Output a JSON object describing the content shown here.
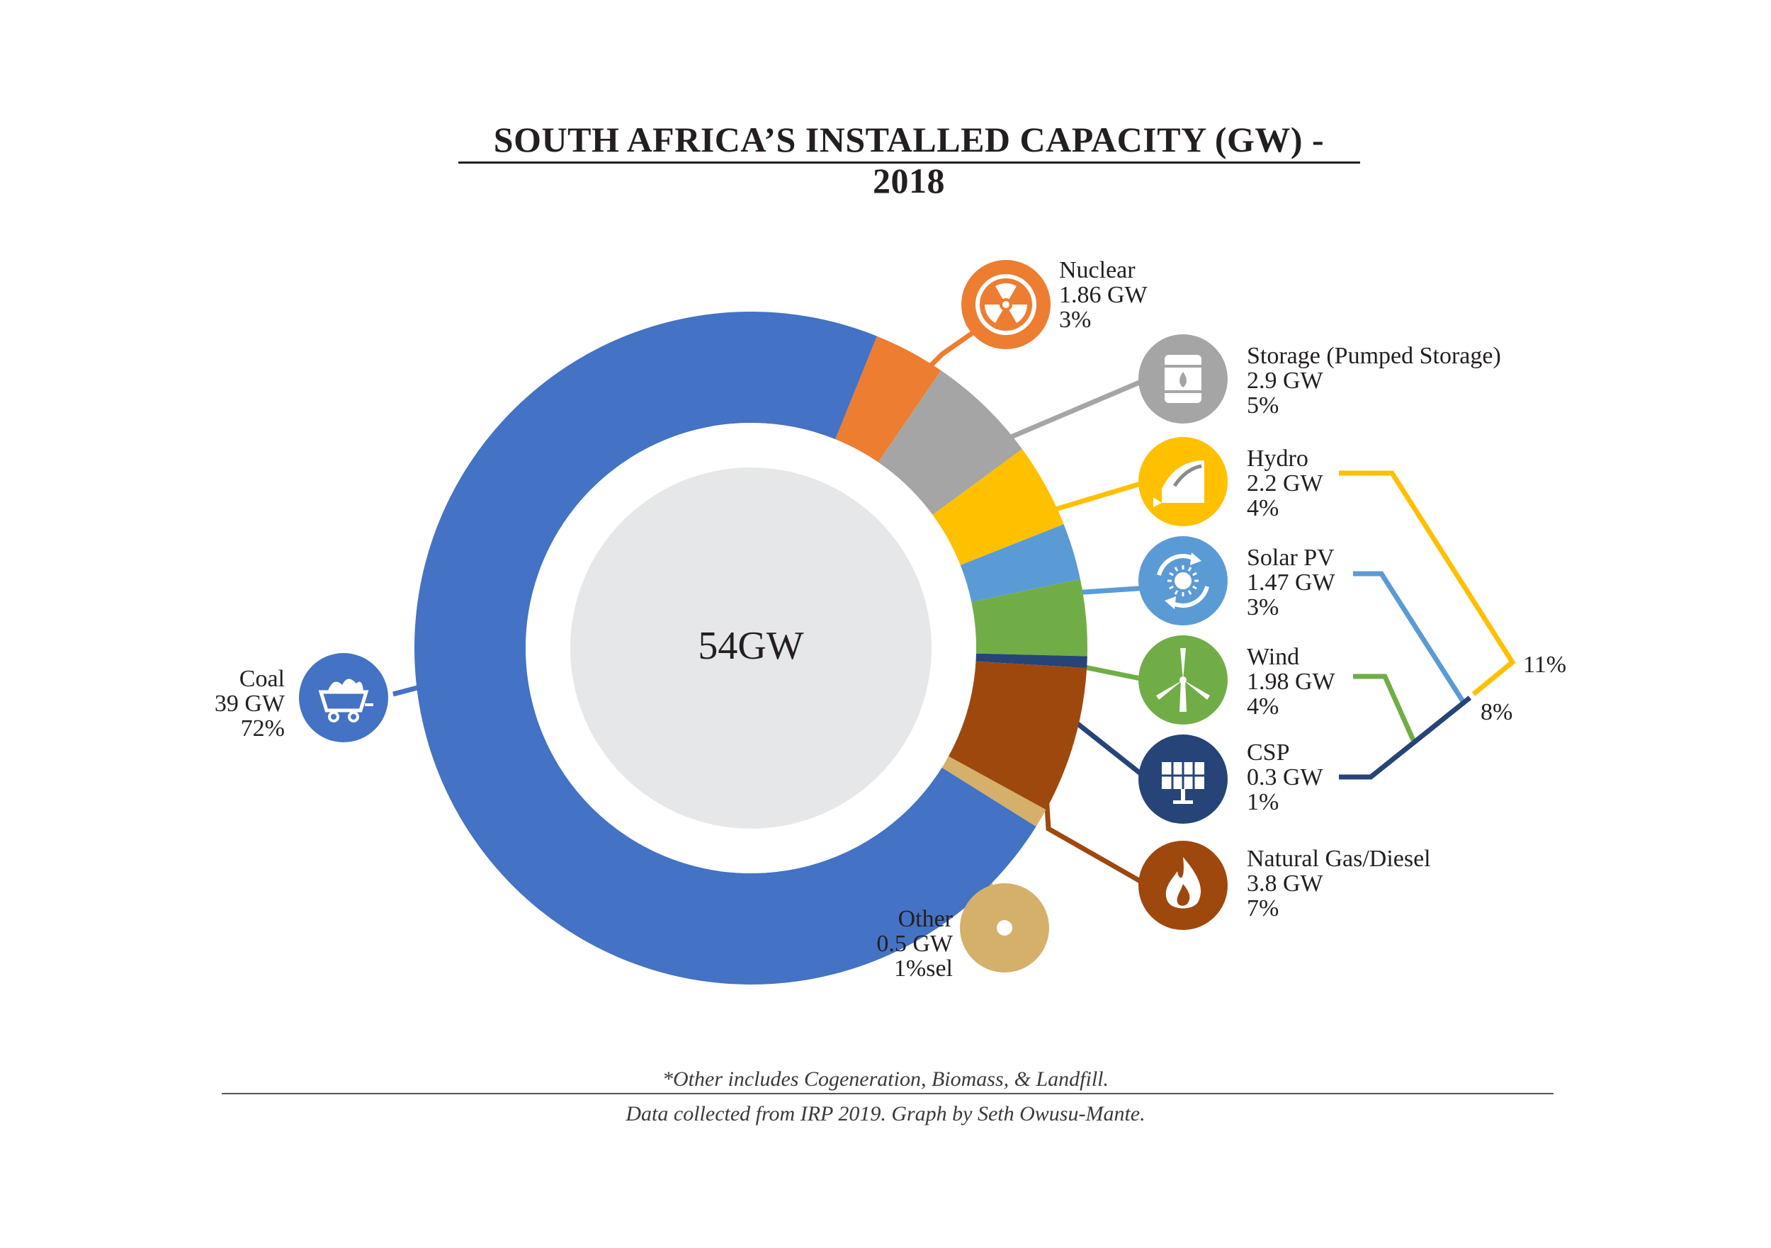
{
  "title": "SOUTH AFRICA’S INSTALLED CAPACITY (GW) - 2018",
  "center_label": "54GW",
  "chart_data": {
    "type": "pie",
    "title": "SOUTH AFRICA’S INSTALLED CAPACITY (GW) - 2018",
    "total": "54GW",
    "slices": [
      {
        "name": "Coal",
        "value_label": "39 GW",
        "pct_label": "72%",
        "value": 39,
        "pct": 72,
        "color": "#4472c4",
        "icon": "mine-cart-icon"
      },
      {
        "name": "Nuclear",
        "value_label": "1.86 GW",
        "pct_label": "3%",
        "value": 1.86,
        "pct": 3,
        "color": "#ed7d31",
        "icon": "radiation-icon"
      },
      {
        "name": "Storage (Pumped Storage)",
        "value_label": "2.9 GW",
        "pct_label": "5%",
        "value": 2.9,
        "pct": 5,
        "color": "#a5a5a5",
        "icon": "battery-barrel-icon"
      },
      {
        "name": "Hydro",
        "value_label": "2.2 GW",
        "pct_label": "4%",
        "value": 2.2,
        "pct": 4,
        "color": "#ffc000",
        "icon": "dam-icon"
      },
      {
        "name": "Solar PV",
        "value_label": "1.47 GW",
        "pct_label": "3%",
        "value": 1.47,
        "pct": 3,
        "color": "#5b9bd5",
        "icon": "solar-cycle-icon"
      },
      {
        "name": "Wind",
        "value_label": "1.98 GW",
        "pct_label": "4%",
        "value": 1.98,
        "pct": 4,
        "color": "#70ad47",
        "icon": "wind-turbine-icon"
      },
      {
        "name": "CSP",
        "value_label": "0.3 GW",
        "pct_label": "1%",
        "value": 0.3,
        "pct": 1,
        "color": "#264478",
        "icon": "solar-panel-icon"
      },
      {
        "name": "Natural Gas/Diesel",
        "value_label": "3.8 GW",
        "pct_label": "7%",
        "value": 3.8,
        "pct": 7,
        "color": "#9e480e",
        "icon": "flame-icon"
      },
      {
        "name": "Other",
        "value_label": "0.5 GW",
        "pct_label": "1%sel",
        "value": 0.5,
        "pct": 1,
        "color": "#d4b06a",
        "icon": "dot-ring-icon"
      }
    ],
    "groups": [
      {
        "label": "11%",
        "members": [
          "Hydro",
          "Solar PV",
          "Wind",
          "CSP"
        ],
        "color": "#ffc000"
      },
      {
        "label": "8%",
        "members": [
          "Solar PV",
          "Wind",
          "CSP"
        ],
        "color": "#5b9bd5"
      }
    ]
  },
  "footnote": "*Other includes Cogeneration, Biomass, & Landfill.",
  "credit": "Data collected from IRP 2019. Graph by Seth Owusu-Mante."
}
